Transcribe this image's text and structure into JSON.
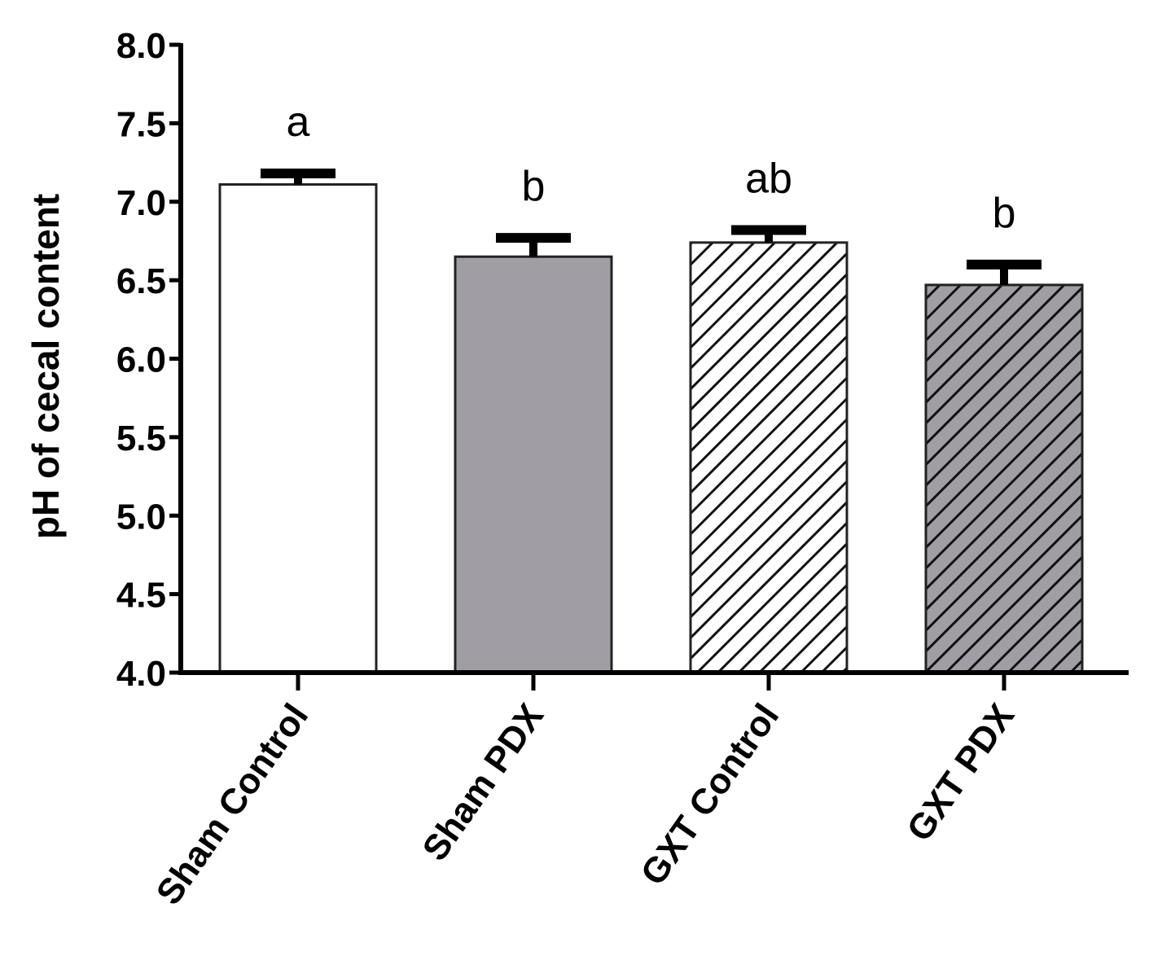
{
  "chart_data": {
    "type": "bar",
    "title": "",
    "xlabel": "",
    "ylabel": "pH of cecal content",
    "ylim": [
      4.0,
      8.0
    ],
    "yticks": [
      "4.0",
      "4.5",
      "5.0",
      "5.5",
      "6.0",
      "6.5",
      "7.0",
      "7.5",
      "8.0"
    ],
    "grid": false,
    "legend": null,
    "categories": [
      "Sham Control",
      "Sham PDX",
      "GXT Control",
      "GXT PDX"
    ],
    "values": [
      7.11,
      6.65,
      6.74,
      6.47
    ],
    "error_upper": [
      0.07,
      0.12,
      0.08,
      0.13
    ],
    "significance_labels": [
      "a",
      "b",
      "ab",
      "b"
    ],
    "bar_styles": [
      {
        "fill": "#ffffff",
        "hatch": false
      },
      {
        "fill": "#a09ea4",
        "hatch": false
      },
      {
        "fill": "#ffffff",
        "hatch": true
      },
      {
        "fill": "#a09ea4",
        "hatch": true
      }
    ]
  }
}
